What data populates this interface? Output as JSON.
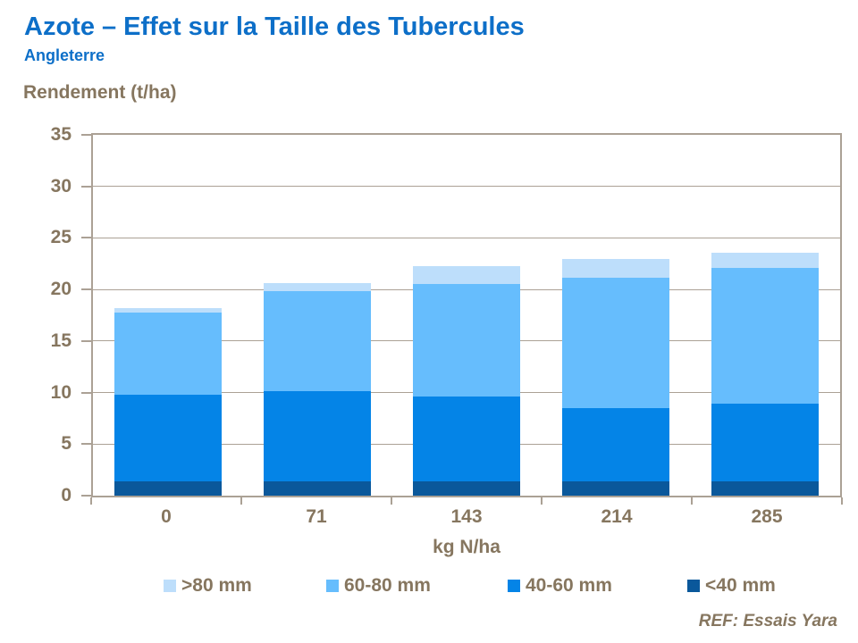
{
  "header": {
    "title": "Azote – Effet sur la Taille des Tubercules",
    "subtitle": "Angleterre"
  },
  "footer": {
    "reference": "REF: Essais Yara"
  },
  "colors": {
    "title_blue": "#0D6FC8",
    "axis_text_brown": "#86765F",
    "frame_taupe": "#ABA195",
    "segment_lt40": "#0A589B",
    "segment_40_60": "#0484E7",
    "segment_60_80": "#66BDFD",
    "segment_gt80": "#BDDEFB"
  },
  "chart_data": {
    "type": "bar",
    "stacked": true,
    "title": "Azote – Effet sur la Taille des Tubercules",
    "subtitle": "Angleterre",
    "categories": [
      "0",
      "71",
      "143",
      "214",
      "285"
    ],
    "series": [
      {
        "name": "<40 mm",
        "color": "#0A589B",
        "values": [
          1.4,
          1.4,
          1.4,
          1.4,
          1.4
        ]
      },
      {
        "name": "40-60 mm",
        "color": "#0484E7",
        "values": [
          8.4,
          8.7,
          8.2,
          7.1,
          7.5
        ]
      },
      {
        "name": "60-80 mm",
        "color": "#66BDFD",
        "values": [
          8.0,
          9.7,
          10.9,
          12.6,
          13.2
        ]
      },
      {
        "name": ">80 mm",
        "color": "#BDDEFB",
        "values": [
          0.4,
          0.8,
          1.8,
          1.9,
          1.5
        ]
      }
    ],
    "totals": [
      18.2,
      20.6,
      22.3,
      23.0,
      23.6
    ],
    "xlabel": "kg N/ha",
    "ylabel": "Rendement (t/ha)",
    "ylim": [
      0,
      35
    ],
    "ytick_step": 5,
    "yticks": [
      0,
      5,
      10,
      15,
      20,
      25,
      30,
      35
    ],
    "grid": true,
    "legend_position": "bottom",
    "legend_order": [
      ">80 mm",
      "60-80 mm",
      "40-60 mm",
      "<40 mm"
    ]
  }
}
